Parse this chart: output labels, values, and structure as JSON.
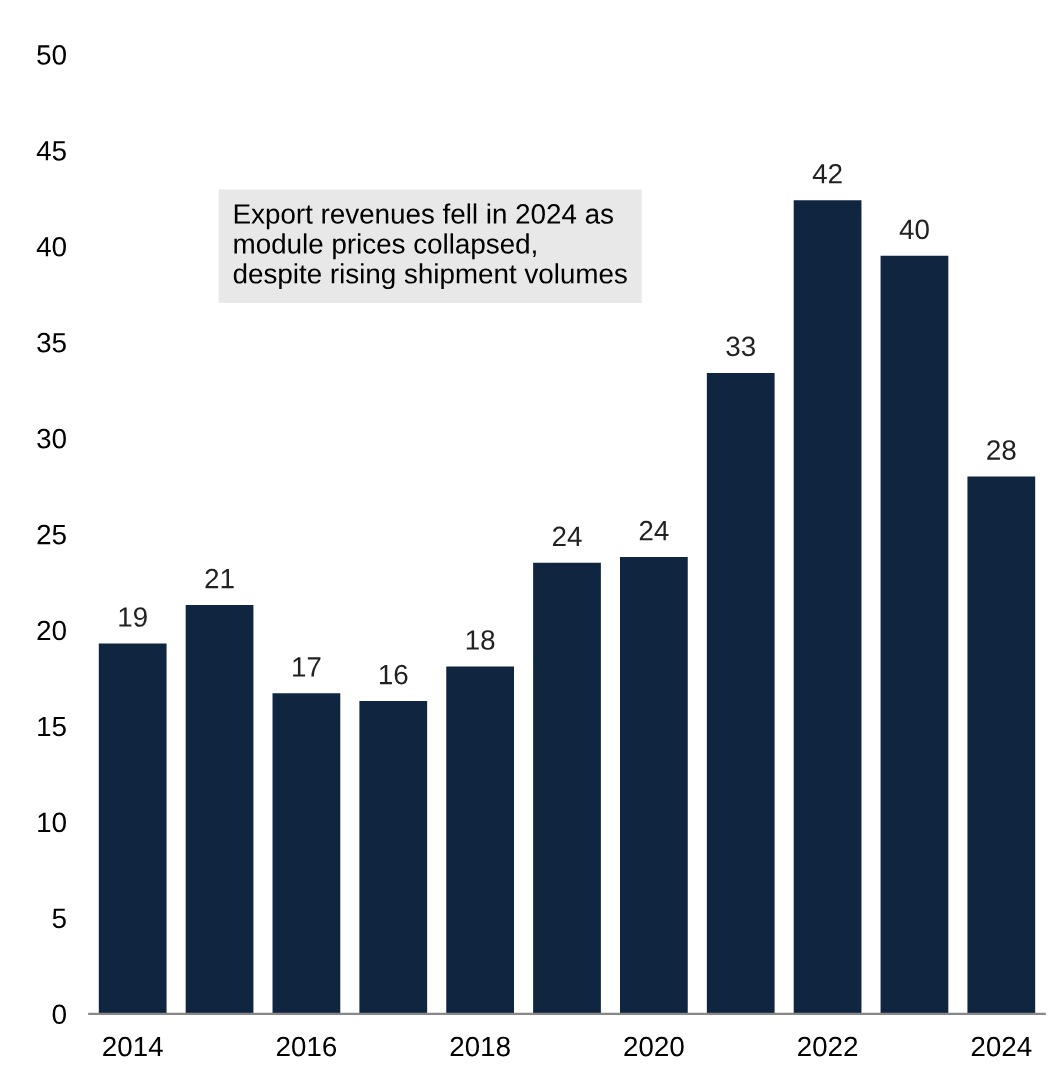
{
  "chart_data": {
    "type": "bar",
    "categories": [
      "2014",
      null,
      "2016",
      null,
      "2018",
      null,
      "2020",
      null,
      "2022",
      null,
      "2024"
    ],
    "values": [
      19.3,
      21.3,
      16.7,
      16.3,
      18.1,
      23.5,
      23.8,
      33.4,
      42.4,
      39.5,
      28.0
    ],
    "value_labels": [
      "19",
      "21",
      "17",
      "16",
      "18",
      "24",
      "24",
      "33",
      "42",
      "40",
      "28"
    ],
    "color": "#10253f",
    "ylim": [
      0,
      50
    ],
    "yticks": [
      0,
      5,
      10,
      15,
      20,
      25,
      30,
      35,
      40,
      45,
      50
    ],
    "annotations": [
      "Export revenues fell in 2024 as\nmodule prices collapsed,\ndespite rising shipment volumes"
    ],
    "grid": false,
    "legend": false
  }
}
